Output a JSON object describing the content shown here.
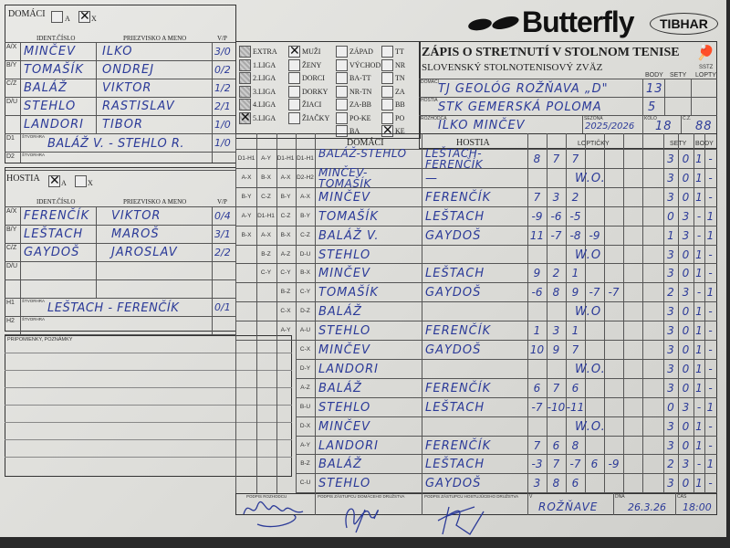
{
  "brand": {
    "logo": "Butterfly",
    "logo2": "TIBHAR",
    "sstz": "SSTZ"
  },
  "form": {
    "title": "ZÁPIS O STRETNUTÍ V STOLNOM TENISE",
    "subtitle": "SLOVENSKÝ STOLNOTENISOVÝ ZVÄZ",
    "col_body": "BODY",
    "col_sety": "SETY",
    "col_lopty": "LOPTY",
    "home_label": "DOMÁCI",
    "home_team": "TJ GEOLÓG ROŽŇAVA „D\"",
    "home_points": "13",
    "guest_label": "HOSTIA",
    "guest_team": "STK GEMERSKÁ POLOMA",
    "guest_points": "5",
    "referee_label": "ROZHODCA",
    "referee": "ILKO MINČEV",
    "season_label": "SEZÓNA",
    "season": "2025/2026",
    "round_label": "KOLO",
    "round": "18",
    "cz_label": "Č.Z.",
    "cz": "88"
  },
  "home": {
    "label": "DOMÁCI",
    "opt_a": "A",
    "opt_x": "X",
    "selected": "X",
    "h_id": "IDENT.ČÍSLO",
    "h_name": "PRIEZVISKO A MENO",
    "h_vp": "V/P",
    "rows": [
      {
        "pos": "A/X",
        "surname": "MINČEV",
        "name": "ILKO",
        "vp": "3/0"
      },
      {
        "pos": "B/Y",
        "surname": "TOMAŠÍK",
        "name": "ONDREJ",
        "vp": "0/2"
      },
      {
        "pos": "C/Z",
        "surname": "BALÁŽ",
        "name": "VIKTOR",
        "vp": "1/2"
      },
      {
        "pos": "D/U",
        "surname": "STEHLO",
        "name": "RASTISLAV",
        "vp": "2/1"
      },
      {
        "pos": "",
        "surname": "LANDORI",
        "name": "TIBOR",
        "vp": "1/0"
      }
    ],
    "d1_pos": "D1",
    "d1_label": "ŠTVORHRA",
    "d1": "BALÁŽ V. - STEHLO R.",
    "d1_vp": "1/0",
    "d2_pos": "D2",
    "d2_label": "ŠTVORHRA"
  },
  "guest": {
    "label": "HOSTIA",
    "opt_a": "A",
    "opt_x": "X",
    "selected": "A",
    "h_id": "IDENT.ČÍSLO",
    "h_name": "PRIEZVISKO A MENO",
    "h_vp": "V/P",
    "rows": [
      {
        "pos": "A/X",
        "surname": "FERENČÍK",
        "name": "VIKTOR",
        "vp": "0/4"
      },
      {
        "pos": "B/Y",
        "surname": "LEŠTACH",
        "name": "MAROŠ",
        "vp": "3/1"
      },
      {
        "pos": "C/Z",
        "surname": "GAYDOŠ",
        "name": "JAROSLAV",
        "vp": "2/2"
      },
      {
        "pos": "D/U",
        "surname": "",
        "name": "",
        "vp": ""
      },
      {
        "pos": "",
        "surname": "",
        "name": "",
        "vp": ""
      }
    ],
    "h1_pos": "H1",
    "h1_label": "ŠTVORHRA",
    "h1": "LEŠTACH - FERENČÍK",
    "h1_vp": "0/1",
    "h2_pos": "H2",
    "h2_label": "ŠTVORHRA"
  },
  "notes_label": "PRIPOMIENKY, POZNÁMKY",
  "categories": {
    "league": [
      {
        "label": "EXTRA",
        "checked": false
      },
      {
        "label": "1.LIGA",
        "checked": false
      },
      {
        "label": "2.LIGA",
        "checked": false
      },
      {
        "label": "3.LIGA",
        "checked": false
      },
      {
        "label": "4.LIGA",
        "checked": false
      },
      {
        "label": "5.LIGA",
        "checked": true
      }
    ],
    "group": [
      {
        "label": "MUŽI",
        "checked": true
      },
      {
        "label": "ŽENY",
        "checked": false
      },
      {
        "label": "DORCI",
        "checked": false
      },
      {
        "label": "DORKY",
        "checked": false
      },
      {
        "label": "ŽIACI",
        "checked": false
      },
      {
        "label": "ŽIAČKY",
        "checked": false
      }
    ],
    "region": [
      {
        "label": "ZÁPAD",
        "checked": false
      },
      {
        "label": "VÝCHOD",
        "checked": false
      },
      {
        "label": "BA-TT",
        "checked": false
      },
      {
        "label": "NR-TN",
        "checked": false
      },
      {
        "label": "ZA-BB",
        "checked": false
      },
      {
        "label": "PO-KE",
        "checked": false
      },
      {
        "label": "BA",
        "checked": false
      }
    ],
    "district": [
      {
        "label": "TT",
        "checked": false
      },
      {
        "label": "NR",
        "checked": false
      },
      {
        "label": "TN",
        "checked": false
      },
      {
        "label": "ZA",
        "checked": false
      },
      {
        "label": "BB",
        "checked": false
      },
      {
        "label": "PO",
        "checked": false
      },
      {
        "label": "KE",
        "checked": true
      }
    ]
  },
  "matches_header": {
    "home": "DOMÁCI",
    "guest": "HOSTIA",
    "balls": "LOPTIČKY",
    "sets": "SETY",
    "points": "BODY"
  },
  "matches": [
    {
      "codes": [
        "D1-H1",
        "A-Y",
        "D1-H1",
        "D1-H1"
      ],
      "home": "BALÁŽ-STEHLO",
      "guest": "LEŠTACH-FERENČÍK",
      "balls": [
        "8",
        "7",
        "7"
      ],
      "sets": [
        "3",
        "0"
      ],
      "points": [
        "1",
        "-"
      ]
    },
    {
      "codes": [
        "A-X",
        "B-X",
        "A-X",
        "D2-H2"
      ],
      "home": "MINČEV-TOMAŠÍK",
      "guest": "—",
      "wo": "W.O.",
      "balls": [],
      "sets": [
        "3",
        "0"
      ],
      "points": [
        "1",
        "-"
      ]
    },
    {
      "codes": [
        "B-Y",
        "C-Z",
        "B-Y",
        "A-X"
      ],
      "home": "MINČEV",
      "guest": "FERENČÍK",
      "balls": [
        "7",
        "3",
        "2"
      ],
      "sets": [
        "3",
        "0"
      ],
      "points": [
        "1",
        "-"
      ]
    },
    {
      "codes": [
        "A-Y",
        "D1-H1",
        "C-Z",
        "B-Y"
      ],
      "home": "TOMAŠÍK",
      "guest": "LEŠTACH",
      "balls": [
        "-9",
        "-6",
        "-5"
      ],
      "sets": [
        "0",
        "3"
      ],
      "points": [
        "-",
        "1"
      ]
    },
    {
      "codes": [
        "B-X",
        "A-X",
        "B-X",
        "C-Z"
      ],
      "home": "BALÁŽ V.",
      "guest": "GAYDOŠ",
      "balls": [
        "11",
        "-7",
        "-8",
        "-9"
      ],
      "sets": [
        "1",
        "3"
      ],
      "points": [
        "-",
        "1"
      ]
    },
    {
      "codes": [
        "",
        "B-Z",
        "A-Z",
        "D-U"
      ],
      "home": "STEHLO",
      "guest": "",
      "wo": "W.O",
      "balls": [],
      "sets": [
        "3",
        "0"
      ],
      "points": [
        "1",
        "-"
      ]
    },
    {
      "codes": [
        "",
        "C-Y",
        "C-Y",
        "B-X"
      ],
      "home": "MINČEV",
      "guest": "LEŠTACH",
      "balls": [
        "9",
        "2",
        "1"
      ],
      "sets": [
        "3",
        "0"
      ],
      "points": [
        "1",
        "-"
      ]
    },
    {
      "codes": [
        "",
        "",
        "B-Z",
        "C-Y"
      ],
      "home": "TOMAŠÍK",
      "guest": "GAYDOŠ",
      "balls": [
        "-6",
        "8",
        "9",
        "-7",
        "-7"
      ],
      "sets": [
        "2",
        "3"
      ],
      "points": [
        "-",
        "1"
      ]
    },
    {
      "codes": [
        "",
        "",
        "C-X",
        "D-Z"
      ],
      "home": "BALÁŽ",
      "guest": "",
      "wo": "W.O",
      "balls": [],
      "sets": [
        "3",
        "0"
      ],
      "points": [
        "1",
        "-"
      ]
    },
    {
      "codes": [
        "",
        "",
        "A-Y",
        "A-U"
      ],
      "home": "STEHLO",
      "guest": "FERENČÍK",
      "balls": [
        "1",
        "3",
        "1"
      ],
      "sets": [
        "3",
        "0"
      ],
      "points": [
        "1",
        "-"
      ]
    },
    {
      "codes": [
        "",
        "",
        "",
        "C-X"
      ],
      "home": "MINČEV",
      "guest": "GAYDOŠ",
      "balls": [
        "10",
        "9",
        "7"
      ],
      "sets": [
        "3",
        "0"
      ],
      "points": [
        "1",
        "-"
      ]
    },
    {
      "codes": [
        "",
        "",
        "",
        "D-Y"
      ],
      "home": "LANDORI",
      "guest": "",
      "wo": "W.O.",
      "balls": [],
      "sets": [
        "3",
        "0"
      ],
      "points": [
        "1",
        "-"
      ]
    },
    {
      "codes": [
        "",
        "",
        "",
        "A-Z"
      ],
      "home": "BALÁŽ",
      "guest": "FERENČÍK",
      "balls": [
        "6",
        "7",
        "6"
      ],
      "sets": [
        "3",
        "0"
      ],
      "points": [
        "1",
        "-"
      ]
    },
    {
      "codes": [
        "",
        "",
        "",
        "B-U"
      ],
      "home": "STEHLO",
      "guest": "LEŠTACH",
      "balls": [
        "-7",
        "-10",
        "-11"
      ],
      "sets": [
        "0",
        "3"
      ],
      "points": [
        "-",
        "1"
      ]
    },
    {
      "codes": [
        "",
        "",
        "",
        "D-X"
      ],
      "home": "MINČEV",
      "guest": "",
      "wo": "W.O.",
      "balls": [],
      "sets": [
        "3",
        "0"
      ],
      "points": [
        "1",
        "-"
      ]
    },
    {
      "codes": [
        "",
        "",
        "",
        "A-Y"
      ],
      "home": "LANDORI",
      "guest": "FERENČÍK",
      "balls": [
        "7",
        "6",
        "8"
      ],
      "sets": [
        "3",
        "0"
      ],
      "points": [
        "1",
        "-"
      ]
    },
    {
      "codes": [
        "",
        "",
        "",
        "B-Z"
      ],
      "home": "BALÁŽ",
      "guest": "LEŠTACH",
      "balls": [
        "-3",
        "7",
        "-7",
        "6",
        "-9"
      ],
      "sets": [
        "2",
        "3"
      ],
      "points": [
        "-",
        "1"
      ]
    },
    {
      "codes": [
        "",
        "",
        "",
        "C-U"
      ],
      "home": "STEHLO",
      "guest": "GAYDOŠ",
      "balls": [
        "3",
        "8",
        "6"
      ],
      "sets": [
        "3",
        "0"
      ],
      "points": [
        "1",
        "-"
      ]
    }
  ],
  "footer": {
    "sig_ref_label": "PODPIS ROZHODCU",
    "sig_home_label": "PODPIS ZÁSTUPCU DOMÁCEHO DRUŽSTVA",
    "sig_guest_label": "PODPIS ZÁSTUPCU HOSTUJÚCEHO DRUŽSTVA",
    "place_label": "V",
    "place": "ROŽŇAVE",
    "date_label": "DŇA",
    "date": "26.3.26",
    "time_label": "ČAS",
    "time": "18:00"
  }
}
